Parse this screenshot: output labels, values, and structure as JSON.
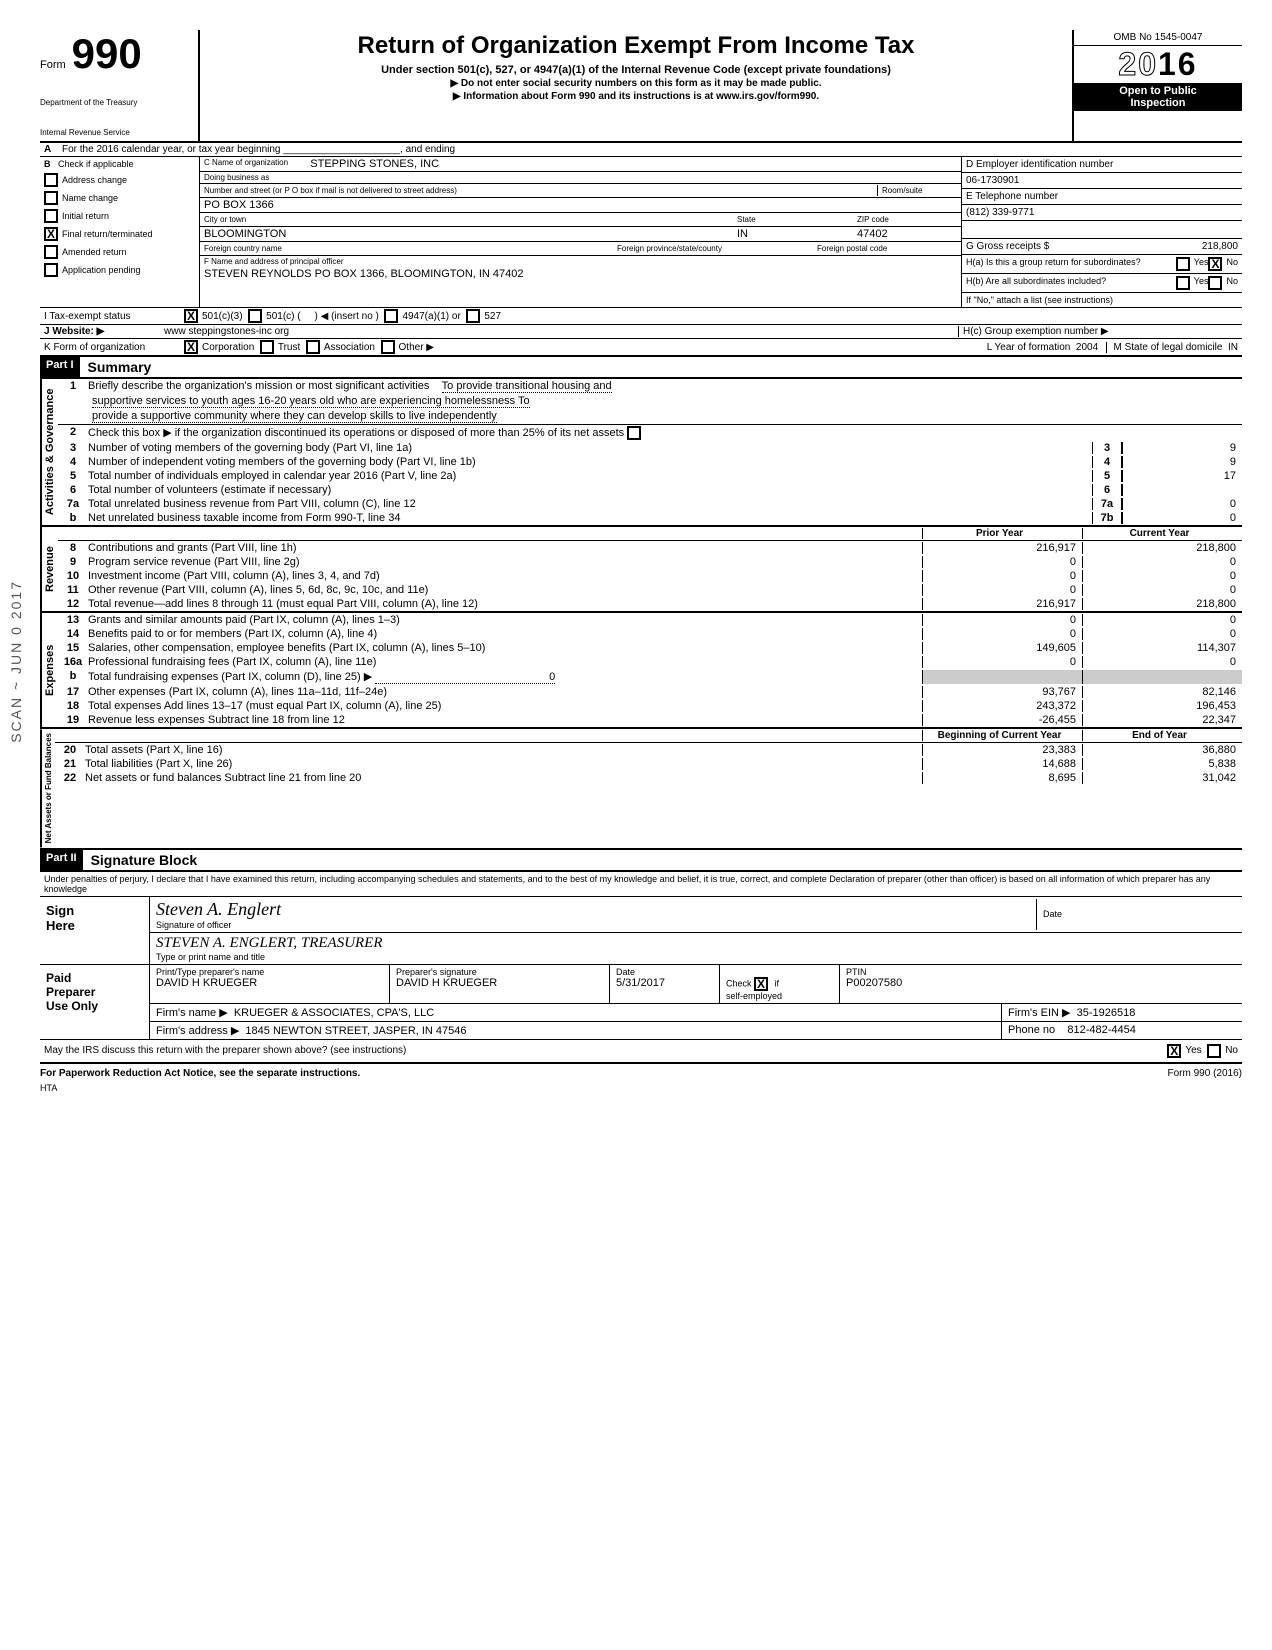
{
  "header": {
    "form_label": "Form",
    "form_number": "990",
    "dept1": "Department of the Treasury",
    "dept2": "Internal Revenue Service",
    "title": "Return of Organization Exempt From Income Tax",
    "subtitle": "Under section 501(c), 527, or 4947(a)(1) of the Internal Revenue Code (except private foundations)",
    "sub2a": "Do not enter social security numbers on this form as it may be made public.",
    "sub2b": "Information about Form 990 and its instructions is at www.irs.gov/form990.",
    "omb": "OMB No 1545-0047",
    "year": "2016",
    "public1": "Open to Public",
    "public2": "Inspection"
  },
  "lineA": "For the 2016 calendar year, or tax year beginning _____________________, and ending",
  "sectionB": {
    "label": "Check if applicable",
    "items": [
      "Address change",
      "Name change",
      "Initial return",
      "Final return/terminated",
      "Amended return",
      "Application pending"
    ],
    "checked_index": 3
  },
  "sectionC": {
    "name_label": "C  Name of organization",
    "name": "STEPPING STONES, INC",
    "dba_label": "Doing business as",
    "street_label": "Number and street (or P O  box if mail is not delivered to street address)",
    "room_label": "Room/suite",
    "street": "PO BOX 1366",
    "city_label": "City or town",
    "state_label": "State",
    "zip_label": "ZIP code",
    "city": "BLOOMINGTON",
    "state": "IN",
    "zip": "47402",
    "foreign_country": "Foreign country name",
    "foreign_prov": "Foreign province/state/county",
    "foreign_postal": "Foreign postal code"
  },
  "sectionD": {
    "ein_label": "D   Employer identification number",
    "ein": "06-1730901",
    "phone_label": "E   Telephone number",
    "phone": "(812) 339-9771",
    "gross_label": "G   Gross receipts $",
    "gross": "218,800"
  },
  "sectionF": {
    "label": "F  Name and address of principal officer",
    "value": "STEVEN REYNOLDS PO BOX 1366, BLOOMINGTON, IN  47402"
  },
  "sectionH": {
    "ha": "H(a) Is this a group return for subordinates?",
    "hb": "H(b) Are all subordinates included?",
    "hnote": "If \"No,\" attach a list (see instructions)",
    "hc": "H(c) Group exemption number ▶",
    "yes": "Yes",
    "no": "No",
    "ha_checked": "no"
  },
  "sectionI": {
    "label": "I    Tax-exempt status",
    "opt1": "501(c)(3)",
    "opt2": "501(c)",
    "insert": "◀ (insert no )",
    "opt3": "4947(a)(1) or",
    "opt4": "527",
    "checked": 0
  },
  "sectionJ": {
    "label": "J  Website: ▶",
    "value": "www steppingstones-inc org"
  },
  "sectionK": {
    "label": "K  Form of organization",
    "opts": [
      "Corporation",
      "Trust",
      "Association",
      "Other ▶"
    ],
    "checked": 0,
    "L_label": "L Year of formation",
    "L_val": "2004",
    "M_label": "M State of legal domicile",
    "M_val": "IN"
  },
  "part1": {
    "header": "Part I",
    "title": "Summary",
    "activities_label": "Activities & Governance",
    "revenue_label": "Revenue",
    "expenses_label": "Expenses",
    "netassets_label": "Net Assets or\nFund Balances",
    "line1_label": "Briefly describe the organization's mission or most significant activities",
    "line1_text1": "To provide transitional housing and",
    "line1_text2": "supportive services to youth ages 16-20 years old who are experiencing homelessness  To",
    "line1_text3": "provide a supportive community where they can develop skills to live independently",
    "line2": "Check this box  ▶        if the organization discontinued its operations or disposed of more than 25% of its net assets",
    "rows_gov": [
      {
        "n": "3",
        "t": "Number of voting members of the governing body (Part VI, line 1a)",
        "box": "3",
        "v": "9"
      },
      {
        "n": "4",
        "t": "Number of independent voting members of the governing body (Part VI, line 1b)",
        "box": "4",
        "v": "9"
      },
      {
        "n": "5",
        "t": "Total number of individuals employed in calendar year 2016 (Part V, line 2a)",
        "box": "5",
        "v": "17"
      },
      {
        "n": "6",
        "t": "Total number of volunteers (estimate if necessary)",
        "box": "6",
        "v": ""
      },
      {
        "n": "7a",
        "t": "Total unrelated business revenue from Part VIII, column (C), line 12",
        "box": "7a",
        "v": "0"
      },
      {
        "n": "b",
        "t": "Net unrelated business taxable income from Form 990-T, line 34",
        "box": "7b",
        "v": "0"
      }
    ],
    "prior_label": "Prior Year",
    "current_label": "Current Year",
    "rows_rev": [
      {
        "n": "8",
        "t": "Contributions and grants (Part VIII, line 1h)",
        "p": "216,917",
        "c": "218,800"
      },
      {
        "n": "9",
        "t": "Program service revenue (Part VIII, line 2g)",
        "p": "0",
        "c": "0"
      },
      {
        "n": "10",
        "t": "Investment income (Part VIII, column (A), lines 3, 4, and 7d)",
        "p": "0",
        "c": "0"
      },
      {
        "n": "11",
        "t": "Other revenue (Part VIII, column (A), lines 5, 6d, 8c, 9c, 10c, and 11e)",
        "p": "0",
        "c": "0"
      },
      {
        "n": "12",
        "t": "Total revenue—add lines 8 through 11 (must equal Part VIII, column (A), line 12)",
        "p": "216,917",
        "c": "218,800"
      }
    ],
    "rows_exp": [
      {
        "n": "13",
        "t": "Grants and similar amounts paid (Part IX, column (A), lines 1–3)",
        "p": "0",
        "c": "0"
      },
      {
        "n": "14",
        "t": "Benefits paid to or for members (Part IX, column (A), line 4)",
        "p": "0",
        "c": "0"
      },
      {
        "n": "15",
        "t": "Salaries, other compensation, employee benefits (Part IX, column (A), lines 5–10)",
        "p": "149,605",
        "c": "114,307"
      },
      {
        "n": "16a",
        "t": "Professional fundraising fees (Part IX, column (A), line 11e)",
        "p": "0",
        "c": "0"
      },
      {
        "n": "b",
        "t": "Total fundraising expenses (Part IX, column (D), line 25)  ▶",
        "p": "",
        "c": "",
        "inline": "0"
      },
      {
        "n": "17",
        "t": "Other expenses (Part IX, column (A), lines 11a–11d, 11f–24e)",
        "p": "93,767",
        "c": "82,146"
      },
      {
        "n": "18",
        "t": "Total expenses  Add lines 13–17 (must equal Part IX, column (A), line 25)",
        "p": "243,372",
        "c": "196,453"
      },
      {
        "n": "19",
        "t": "Revenue less expenses  Subtract line 18 from line 12",
        "p": "-26,455",
        "c": "22,347"
      }
    ],
    "begin_label": "Beginning of Current Year",
    "end_label": "End of Year",
    "rows_net": [
      {
        "n": "20",
        "t": "Total assets (Part X, line 16)",
        "p": "23,383",
        "c": "36,880"
      },
      {
        "n": "21",
        "t": "Total liabilities (Part X, line 26)",
        "p": "14,688",
        "c": "5,838"
      },
      {
        "n": "22",
        "t": "Net assets or fund balances  Subtract line 21 from line 20",
        "p": "8,695",
        "c": "31,042"
      }
    ]
  },
  "part2": {
    "header": "Part II",
    "title": "Signature Block",
    "perjury": "Under penalties of perjury, I declare that I have examined this return, including accompanying schedules and statements, and to the best of my knowledge and belief, it is true, correct, and complete  Declaration of preparer (other than officer) is based on all information of which preparer has any knowledge",
    "sign_here": "Sign\nHere",
    "sig_officer_label": "Signature of officer",
    "date_label": "Date",
    "typed_label": "Type or print name and title",
    "officer_sig": "Steven A. Englert",
    "officer_typed": "STEVEN  A. ENGLERT,     TREASURER",
    "paid": "Paid\nPreparer\nUse Only",
    "prep_name_label": "Print/Type preparer's name",
    "prep_sig_label": "Preparer's signature",
    "prep_name": "DAVID H KRUEGER",
    "prep_sig": "DAVID H KRUEGER",
    "prep_date": "5/31/2017",
    "check_if": "Check        if\nself-employed",
    "check_checked": true,
    "ptin_label": "PTIN",
    "ptin": "P00207580",
    "firm_name_label": "Firm's name    ▶",
    "firm_name": "KRUEGER & ASSOCIATES, CPA'S, LLC",
    "firm_ein_label": "Firm's EIN ▶",
    "firm_ein": "35-1926518",
    "firm_addr_label": "Firm's address ▶",
    "firm_addr": "1845 NEWTON STREET, JASPER, IN 47546",
    "phone_label": "Phone no",
    "phone": "812-482-4454",
    "discuss": "May the IRS discuss this return with the preparer shown above? (see instructions)",
    "discuss_yes": "Yes",
    "discuss_no": "No",
    "discuss_checked": "yes"
  },
  "footer": {
    "pra": "For Paperwork Reduction Act Notice, see the separate instructions.",
    "hta": "HTA",
    "form": "Form 990 (2016)"
  },
  "scan_mark": "SCAN ~ JUN 0 2017"
}
